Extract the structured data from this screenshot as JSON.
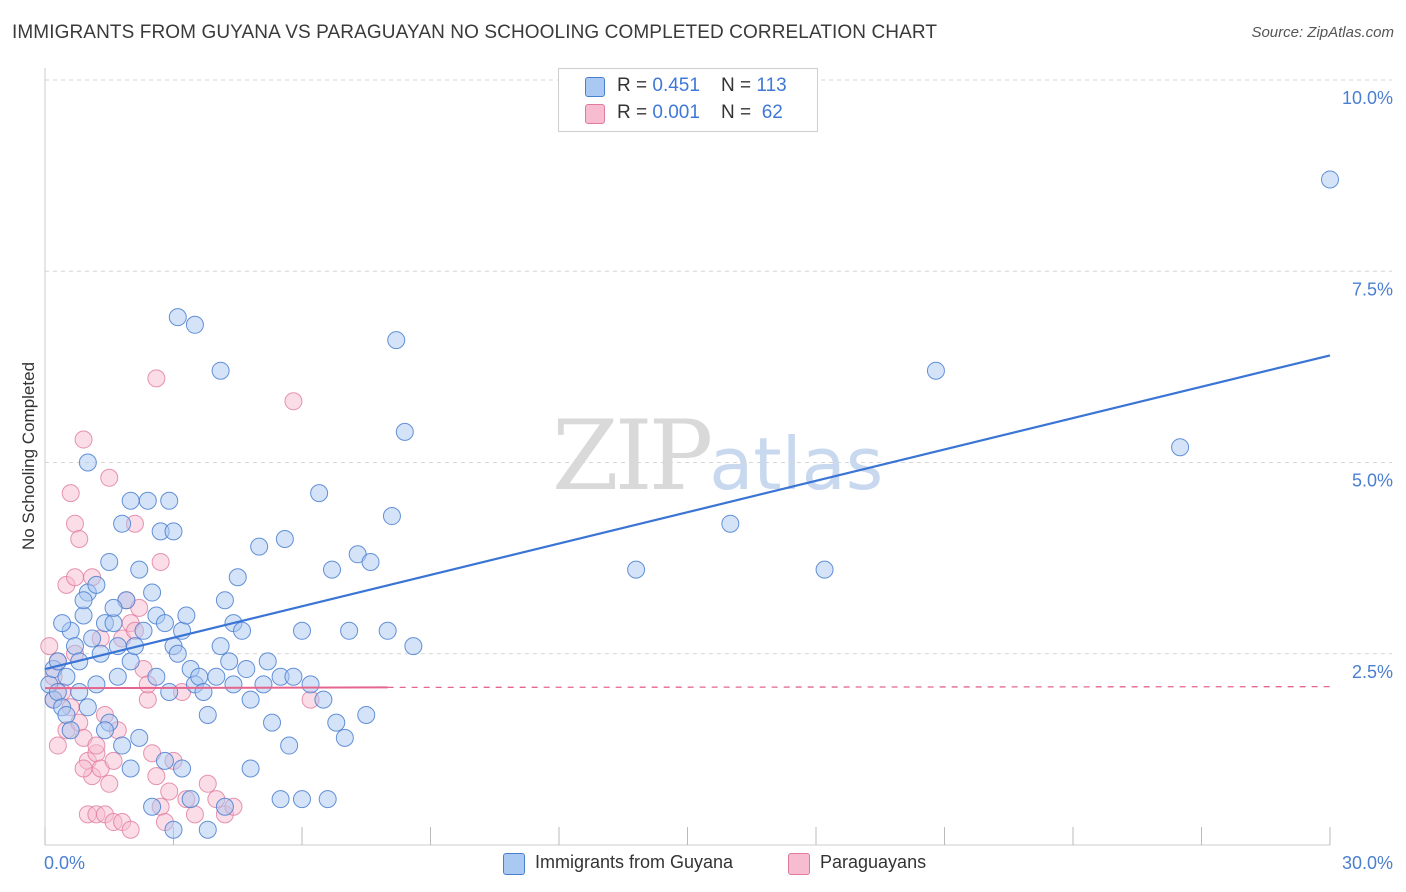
{
  "header": {
    "title": "IMMIGRANTS FROM GUYANA VS PARAGUAYAN NO SCHOOLING COMPLETED CORRELATION CHART",
    "source": "Source: ZipAtlas.com"
  },
  "watermark": {
    "zip": "ZIP",
    "atlas": "atlas"
  },
  "legend": {
    "rows": [
      {
        "r_label": "R = ",
        "r_value": "0.451",
        "n_label": "N = ",
        "n_value": "113"
      },
      {
        "r_label": "R = ",
        "r_value": "0.001",
        "n_label": "N = ",
        "n_value": " 62"
      }
    ]
  },
  "colors": {
    "series1_fill": "#a9c8f2",
    "series1_stroke": "#4a7fd0",
    "series1_line": "#3a74d4",
    "series2_fill": "#f7bcd0",
    "series2_stroke": "#e07a9e",
    "series2_line": "#e4668f",
    "grid": "#d6d6d6",
    "axis_text": "#4a7fd0"
  },
  "chart_data": {
    "type": "scatter",
    "title": "IMMIGRANTS FROM GUYANA VS PARAGUAYAN NO SCHOOLING COMPLETED CORRELATION CHART",
    "xlabel": "",
    "ylabel": "No Schooling Completed",
    "xlim": [
      0,
      30
    ],
    "ylim": [
      0,
      10
    ],
    "x_tick_labels": [
      "0.0%",
      "30.0%"
    ],
    "y_ticks": [
      2.5,
      5.0,
      7.5,
      10.0
    ],
    "y_tick_labels": [
      "2.5%",
      "5.0%",
      "7.5%",
      "10.0%"
    ],
    "series": [
      {
        "name": "Immigrants from Guyana",
        "R": 0.451,
        "N": 113,
        "trend": {
          "x": [
            0,
            30
          ],
          "y": [
            2.3,
            6.4
          ]
        },
        "points": [
          [
            0.1,
            2.1
          ],
          [
            0.2,
            1.9
          ],
          [
            0.2,
            2.3
          ],
          [
            0.3,
            2.0
          ],
          [
            0.4,
            1.8
          ],
          [
            0.5,
            2.2
          ],
          [
            0.3,
            2.4
          ],
          [
            0.6,
            2.8
          ],
          [
            0.7,
            2.6
          ],
          [
            0.8,
            2.4
          ],
          [
            0.9,
            3.0
          ],
          [
            1.0,
            3.3
          ],
          [
            1.1,
            2.7
          ],
          [
            1.2,
            3.4
          ],
          [
            1.3,
            2.5
          ],
          [
            1.4,
            2.9
          ],
          [
            1.5,
            3.7
          ],
          [
            1.6,
            2.9
          ],
          [
            1.7,
            2.6
          ],
          [
            1.8,
            4.2
          ],
          [
            1.9,
            3.2
          ],
          [
            2.0,
            2.4
          ],
          [
            2.1,
            2.6
          ],
          [
            2.2,
            3.6
          ],
          [
            2.3,
            2.8
          ],
          [
            2.4,
            4.5
          ],
          [
            2.5,
            3.3
          ],
          [
            2.6,
            3.0
          ],
          [
            2.7,
            4.1
          ],
          [
            2.8,
            2.9
          ],
          [
            2.9,
            4.5
          ],
          [
            3.0,
            2.6
          ],
          [
            3.1,
            2.5
          ],
          [
            3.2,
            2.8
          ],
          [
            3.3,
            3.0
          ],
          [
            3.4,
            2.3
          ],
          [
            3.5,
            2.1
          ],
          [
            3.6,
            2.2
          ],
          [
            3.7,
            2.0
          ],
          [
            3.8,
            1.7
          ],
          [
            4.0,
            2.2
          ],
          [
            4.1,
            2.6
          ],
          [
            4.2,
            3.2
          ],
          [
            4.3,
            2.4
          ],
          [
            4.4,
            2.9
          ],
          [
            4.5,
            3.5
          ],
          [
            4.6,
            2.8
          ],
          [
            4.7,
            2.3
          ],
          [
            4.8,
            1.9
          ],
          [
            5.0,
            3.9
          ],
          [
            5.1,
            2.1
          ],
          [
            5.2,
            2.4
          ],
          [
            5.3,
            1.6
          ],
          [
            5.5,
            2.2
          ],
          [
            5.6,
            4.0
          ],
          [
            5.7,
            1.3
          ],
          [
            5.8,
            2.2
          ],
          [
            6.0,
            2.8
          ],
          [
            6.2,
            2.1
          ],
          [
            6.4,
            4.6
          ],
          [
            6.5,
            1.9
          ],
          [
            6.6,
            0.6
          ],
          [
            6.7,
            3.6
          ],
          [
            6.8,
            1.6
          ],
          [
            7.0,
            1.4
          ],
          [
            7.1,
            2.8
          ],
          [
            7.3,
            3.8
          ],
          [
            7.5,
            1.7
          ],
          [
            7.6,
            3.7
          ],
          [
            8.0,
            2.8
          ],
          [
            8.1,
            4.3
          ],
          [
            8.2,
            6.6
          ],
          [
            8.4,
            5.4
          ],
          [
            8.6,
            2.6
          ],
          [
            3.1,
            6.9
          ],
          [
            3.5,
            6.8
          ],
          [
            4.1,
            6.2
          ],
          [
            1.0,
            5.0
          ],
          [
            2.0,
            4.5
          ],
          [
            3.0,
            4.1
          ],
          [
            1.5,
            1.6
          ],
          [
            1.8,
            1.3
          ],
          [
            2.0,
            1.0
          ],
          [
            2.2,
            1.4
          ],
          [
            2.5,
            0.5
          ],
          [
            3.0,
            0.2
          ],
          [
            3.4,
            0.6
          ],
          [
            3.8,
            0.2
          ],
          [
            4.2,
            0.5
          ],
          [
            4.8,
            1.0
          ],
          [
            5.5,
            0.6
          ],
          [
            6.0,
            0.6
          ],
          [
            1.0,
            1.8
          ],
          [
            0.5,
            1.7
          ],
          [
            0.8,
            2.0
          ],
          [
            1.2,
            2.1
          ],
          [
            1.4,
            1.5
          ],
          [
            2.8,
            1.1
          ],
          [
            3.2,
            1.0
          ],
          [
            2.6,
            2.2
          ],
          [
            13.8,
            3.6
          ],
          [
            16.0,
            4.2
          ],
          [
            18.2,
            3.6
          ],
          [
            20.8,
            6.2
          ],
          [
            26.5,
            5.2
          ],
          [
            30.0,
            8.7
          ],
          [
            1.6,
            3.1
          ],
          [
            0.9,
            3.2
          ],
          [
            2.9,
            2.0
          ],
          [
            0.4,
            2.9
          ],
          [
            1.7,
            2.2
          ],
          [
            4.4,
            2.1
          ],
          [
            0.6,
            1.5
          ]
        ]
      },
      {
        "name": "Paraguayans",
        "R": 0.001,
        "N": 62,
        "trend": {
          "x": [
            0,
            8
          ],
          "y": [
            2.05,
            2.06
          ]
        },
        "trend_dashed": {
          "x": [
            8,
            30
          ],
          "y": [
            2.06,
            2.07
          ]
        },
        "points": [
          [
            0.1,
            2.6
          ],
          [
            0.2,
            2.2
          ],
          [
            0.3,
            2.4
          ],
          [
            0.2,
            1.9
          ],
          [
            0.4,
            2.0
          ],
          [
            0.3,
            1.3
          ],
          [
            0.5,
            1.5
          ],
          [
            0.6,
            1.8
          ],
          [
            0.7,
            2.5
          ],
          [
            0.8,
            1.6
          ],
          [
            0.9,
            1.4
          ],
          [
            1.0,
            1.1
          ],
          [
            1.1,
            0.9
          ],
          [
            1.2,
            1.2
          ],
          [
            1.3,
            1.0
          ],
          [
            1.4,
            1.7
          ],
          [
            1.5,
            0.8
          ],
          [
            1.6,
            1.1
          ],
          [
            1.7,
            1.5
          ],
          [
            1.8,
            2.7
          ],
          [
            1.9,
            3.2
          ],
          [
            2.0,
            2.9
          ],
          [
            2.1,
            2.8
          ],
          [
            2.2,
            3.1
          ],
          [
            2.3,
            2.3
          ],
          [
            2.4,
            1.9
          ],
          [
            2.5,
            1.2
          ],
          [
            2.6,
            0.9
          ],
          [
            2.7,
            0.5
          ],
          [
            2.8,
            0.3
          ],
          [
            0.6,
            4.6
          ],
          [
            0.7,
            4.2
          ],
          [
            0.8,
            4.0
          ],
          [
            0.9,
            5.3
          ],
          [
            1.5,
            4.8
          ],
          [
            2.1,
            4.2
          ],
          [
            2.6,
            6.1
          ],
          [
            2.7,
            3.7
          ],
          [
            5.8,
            5.8
          ],
          [
            3.2,
            2.0
          ],
          [
            0.5,
            3.4
          ],
          [
            0.7,
            3.5
          ],
          [
            1.1,
            3.5
          ],
          [
            1.3,
            2.7
          ],
          [
            0.9,
            1.0
          ],
          [
            1.0,
            0.4
          ],
          [
            1.2,
            0.4
          ],
          [
            1.4,
            0.4
          ],
          [
            1.6,
            0.3
          ],
          [
            1.8,
            0.3
          ],
          [
            2.0,
            0.2
          ],
          [
            2.9,
            0.7
          ],
          [
            3.0,
            1.1
          ],
          [
            3.3,
            0.6
          ],
          [
            3.5,
            0.4
          ],
          [
            3.8,
            0.8
          ],
          [
            4.0,
            0.6
          ],
          [
            4.2,
            0.4
          ],
          [
            4.4,
            0.5
          ],
          [
            6.2,
            1.9
          ],
          [
            2.4,
            2.1
          ],
          [
            1.2,
            1.3
          ]
        ]
      }
    ]
  },
  "bottom_legend": [
    {
      "label": "Immigrants from Guyana"
    },
    {
      "label": "Paraguayans"
    }
  ]
}
